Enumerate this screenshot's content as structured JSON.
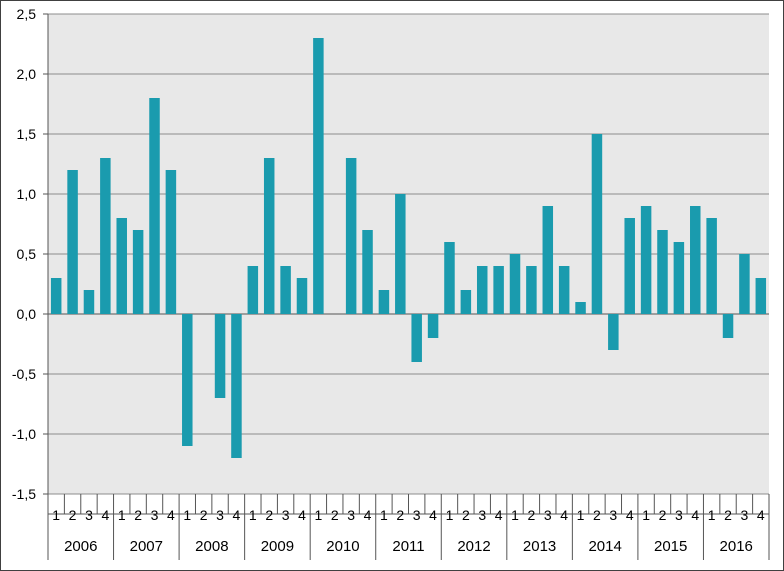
{
  "chart_data": {
    "type": "bar",
    "title": "",
    "xlabel": "",
    "ylabel": "",
    "ylim": [
      -1.5,
      2.5
    ],
    "y_ticks": [
      {
        "value": 2.5,
        "label": "2,5"
      },
      {
        "value": 2.0,
        "label": "2,0"
      },
      {
        "value": 1.5,
        "label": "1,5"
      },
      {
        "value": 1.0,
        "label": "1,0"
      },
      {
        "value": 0.5,
        "label": "0,5"
      },
      {
        "value": 0.0,
        "label": "0,0"
      },
      {
        "value": -0.5,
        "label": "-0,5"
      },
      {
        "value": -1.0,
        "label": "-1,0"
      },
      {
        "value": -1.5,
        "label": "-1,5"
      }
    ],
    "grid": true,
    "years": [
      "2006",
      "2007",
      "2008",
      "2009",
      "2010",
      "2011",
      "2012",
      "2013",
      "2014",
      "2015",
      "2016"
    ],
    "quarters": [
      "1",
      "2",
      "3",
      "4"
    ],
    "values": [
      0.3,
      1.2,
      0.2,
      1.3,
      0.8,
      0.7,
      1.8,
      1.2,
      -1.1,
      0.0,
      -0.7,
      -1.2,
      0.4,
      1.3,
      0.4,
      0.3,
      2.3,
      0.0,
      1.3,
      0.7,
      0.2,
      1.0,
      -0.4,
      -0.2,
      0.6,
      0.2,
      0.4,
      0.4,
      0.5,
      0.4,
      0.9,
      0.4,
      0.1,
      1.5,
      -0.3,
      0.8,
      0.9,
      0.7,
      0.6,
      0.9,
      0.8,
      -0.2,
      0.5,
      0.3
    ],
    "colors": {
      "bar": "#1a9bae",
      "plot_background": "#e8e8e8",
      "grid": "#8c8c8c",
      "axis": "#555555"
    }
  }
}
